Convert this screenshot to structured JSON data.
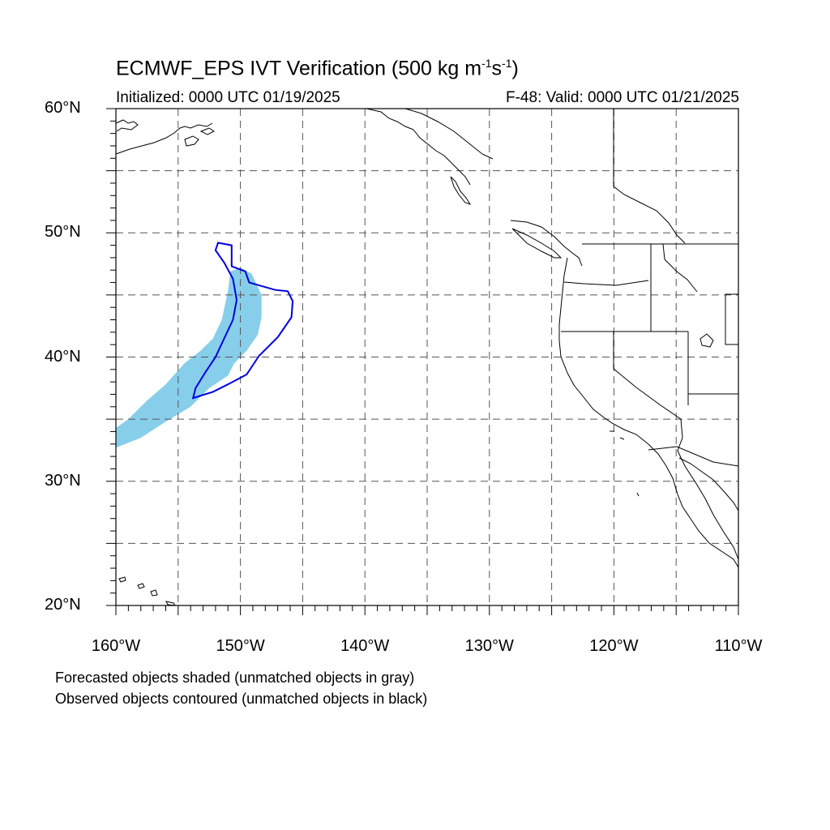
{
  "title": {
    "main_prefix": "ECMWF_EPS IVT Verification (500 kg m",
    "exp1": "-1",
    "mid": "s",
    "exp2": "-1",
    "suffix": ")"
  },
  "subtitle_left": "Initialized: 0000 UTC 01/19/2025",
  "subtitle_right": "F-48: Valid: 0000 UTC 01/21/2025",
  "lat_labels": [
    "60°N",
    "50°N",
    "40°N",
    "30°N",
    "20°N"
  ],
  "lon_labels": [
    "160°W",
    "150°W",
    "140°W",
    "130°W",
    "120°W",
    "110°W"
  ],
  "captions": [
    "Forecasted objects shaded (unmatched objects in gray)",
    "Observed objects contoured (unmatched objects in black)"
  ],
  "colors": {
    "forecast_fill": "#87CEEB",
    "observed_contour": "#0000DD",
    "coastline": "#000000",
    "grid": "#555555"
  },
  "chart_data": {
    "type": "map",
    "projection": "cylindrical-equidistant",
    "lon_range": [
      -160,
      -110
    ],
    "lat_range": [
      20,
      60
    ],
    "grid_lons": [
      -155,
      -150,
      -145,
      -140,
      -135,
      -130,
      -125,
      -120,
      -115
    ],
    "grid_lats": [
      25,
      30,
      35,
      40,
      45,
      50,
      55
    ],
    "forecast_object": {
      "matched": true,
      "outline": [
        [
          -160,
          32.7
        ],
        [
          -158,
          33.5
        ],
        [
          -156,
          34.8
        ],
        [
          -154,
          36.0
        ],
        [
          -152.5,
          37.5
        ],
        [
          -151,
          38.5
        ],
        [
          -150.5,
          39.5
        ],
        [
          -149.5,
          40.5
        ],
        [
          -148.6,
          41.8
        ],
        [
          -148.3,
          43.2
        ],
        [
          -148.3,
          45.0
        ],
        [
          -149.1,
          46.7
        ],
        [
          -150,
          47.2
        ],
        [
          -150.8,
          46.9
        ],
        [
          -151,
          45.3
        ],
        [
          -151.5,
          43.0
        ],
        [
          -152.2,
          41.5
        ],
        [
          -153.2,
          40.5
        ],
        [
          -154.5,
          39.5
        ],
        [
          -156,
          37.8
        ],
        [
          -157.5,
          36.5
        ],
        [
          -159,
          35.0
        ],
        [
          -160,
          34.3
        ]
      ]
    },
    "observed_object": {
      "matched": true,
      "outline": [
        [
          -151.8,
          49.2
        ],
        [
          -150.7,
          49.0
        ],
        [
          -150.7,
          47.3
        ],
        [
          -149.6,
          46.9
        ],
        [
          -149.3,
          46.0
        ],
        [
          -147.2,
          45.4
        ],
        [
          -146.2,
          45.3
        ],
        [
          -145.8,
          44.5
        ],
        [
          -145.9,
          43.2
        ],
        [
          -147.0,
          41.6
        ],
        [
          -148.5,
          40.1
        ],
        [
          -149.5,
          38.6
        ],
        [
          -151.0,
          37.8
        ],
        [
          -152.2,
          37.2
        ],
        [
          -153.8,
          36.7
        ],
        [
          -153.6,
          37.5
        ],
        [
          -152.8,
          38.8
        ],
        [
          -152.0,
          40.0
        ],
        [
          -151.3,
          41.5
        ],
        [
          -150.6,
          43.0
        ],
        [
          -150.3,
          44.6
        ],
        [
          -150.6,
          46.3
        ],
        [
          -151.3,
          47.6
        ],
        [
          -152.0,
          48.6
        ]
      ]
    }
  }
}
